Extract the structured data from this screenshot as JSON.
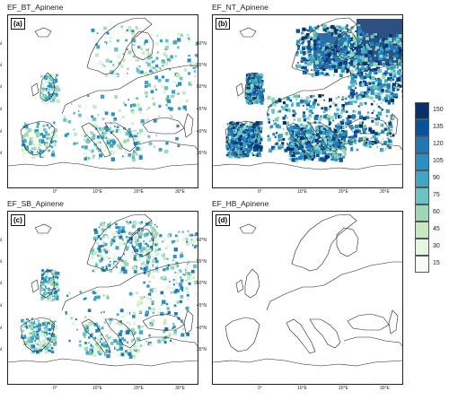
{
  "panels": [
    {
      "title": "EF_BT_Apinene",
      "label": "(a)",
      "intensity": "low"
    },
    {
      "title": "EF_NT_Apinene",
      "label": "(b)",
      "intensity": "high"
    },
    {
      "title": "EF_SB_Apinene",
      "label": "(c)",
      "intensity": "medium"
    },
    {
      "title": "EF_HB_Apinene",
      "label": "(d)",
      "intensity": "none"
    }
  ],
  "lat_labels": [
    "60°N",
    "55°N",
    "50°N",
    "45°N",
    "40°N",
    "35°N"
  ],
  "lon_labels": [
    "0°",
    "10°E",
    "20°E",
    "30°E"
  ],
  "legend": {
    "levels": [
      "150",
      "135",
      "120",
      "105",
      "90",
      "75",
      "60",
      "45",
      "30",
      "15"
    ],
    "colors": [
      "#08306b",
      "#08519c",
      "#1f78b4",
      "#2c8fc0",
      "#41a6c4",
      "#6cc4c0",
      "#9dd8b5",
      "#c7e9c0",
      "#e5f5e0",
      "#f7fcf5"
    ]
  }
}
